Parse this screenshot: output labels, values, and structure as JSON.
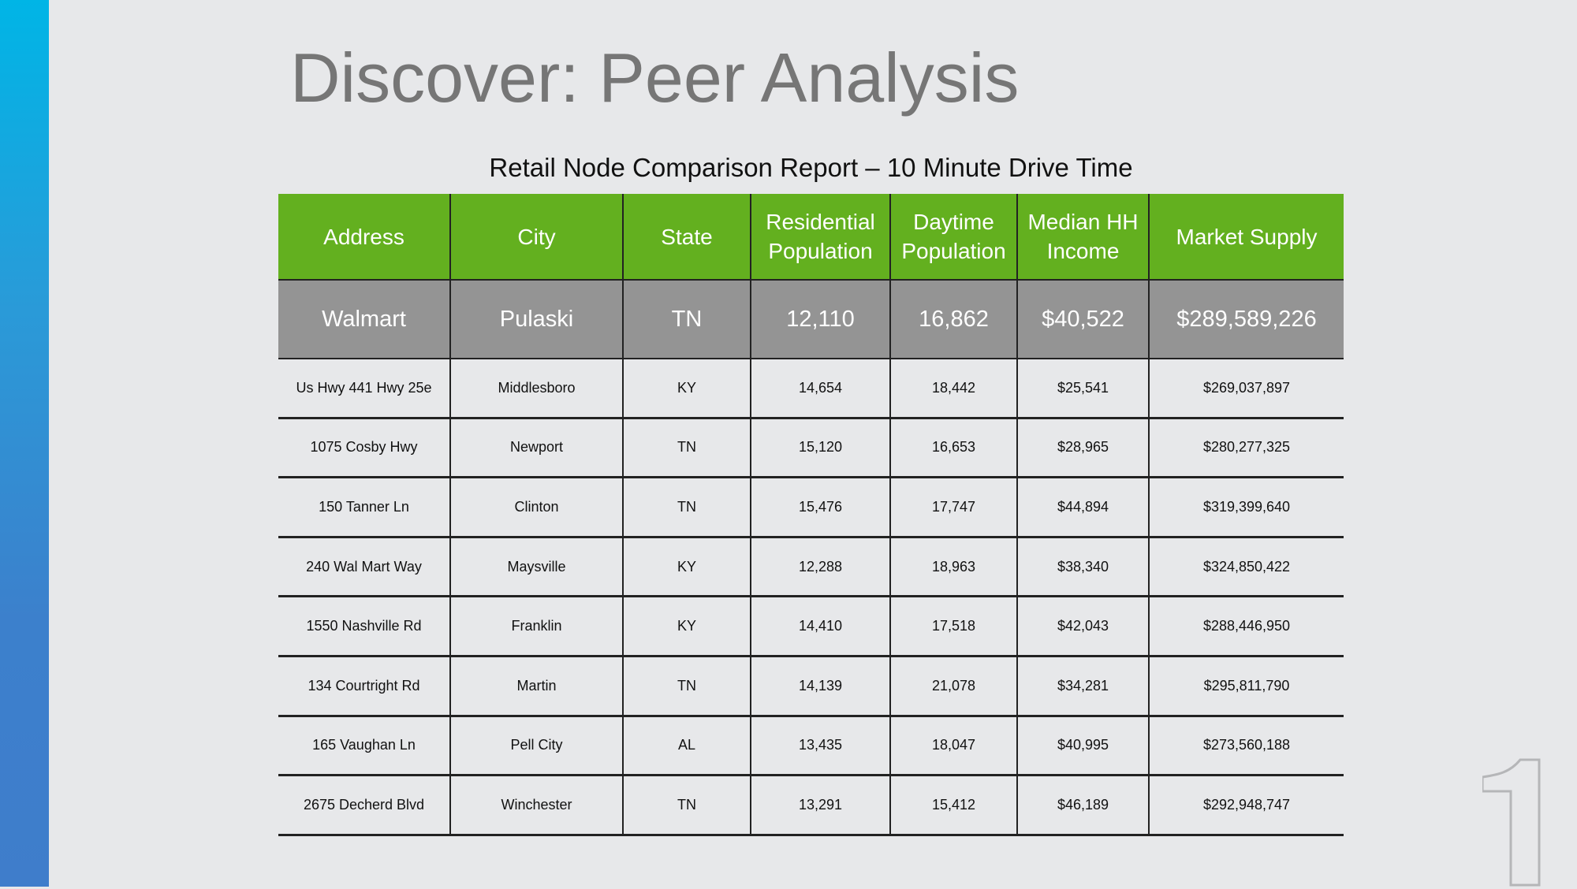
{
  "slide": {
    "title": "Discover: Peer Analysis",
    "subtitle": "Retail Node Comparison Report – 10 Minute Drive Time",
    "page_number": "1"
  },
  "table": {
    "headers": [
      "Address",
      "City",
      "State",
      "Residential Population",
      "Daytime Population",
      "Median HH Income",
      "Market Supply"
    ],
    "subject": [
      "Walmart",
      "Pulaski",
      "TN",
      "12,110",
      "16,862",
      "$40,522",
      "$289,589,226"
    ],
    "rows": [
      [
        "Us Hwy 441 Hwy 25e",
        "Middlesboro",
        "KY",
        "14,654",
        "18,442",
        "$25,541",
        "$269,037,897"
      ],
      [
        "1075 Cosby Hwy",
        "Newport",
        "TN",
        "15,120",
        "16,653",
        "$28,965",
        "$280,277,325"
      ],
      [
        "150 Tanner Ln",
        "Clinton",
        "TN",
        "15,476",
        "17,747",
        "$44,894",
        "$319,399,640"
      ],
      [
        "240 Wal Mart Way",
        "Maysville",
        "KY",
        "12,288",
        "18,963",
        "$38,340",
        "$324,850,422"
      ],
      [
        "1550 Nashville Rd",
        "Franklin",
        "KY",
        "14,410",
        "17,518",
        "$42,043",
        "$288,446,950"
      ],
      [
        "134 Courtright Rd",
        "Martin",
        "TN",
        "14,139",
        "21,078",
        "$34,281",
        "$295,811,790"
      ],
      [
        "165 Vaughan Ln",
        "Pell City",
        "AL",
        "13,435",
        "18,047",
        "$40,995",
        "$273,560,188"
      ],
      [
        "2675 Decherd Blvd",
        "Winchester",
        "TN",
        "13,291",
        "15,412",
        "$46,189",
        "$292,948,747"
      ]
    ]
  },
  "colors": {
    "header": "#63b01f",
    "subject_row": "#949494",
    "sidebar_top": "#00b5e6",
    "sidebar_bottom": "#3f7dcb"
  }
}
